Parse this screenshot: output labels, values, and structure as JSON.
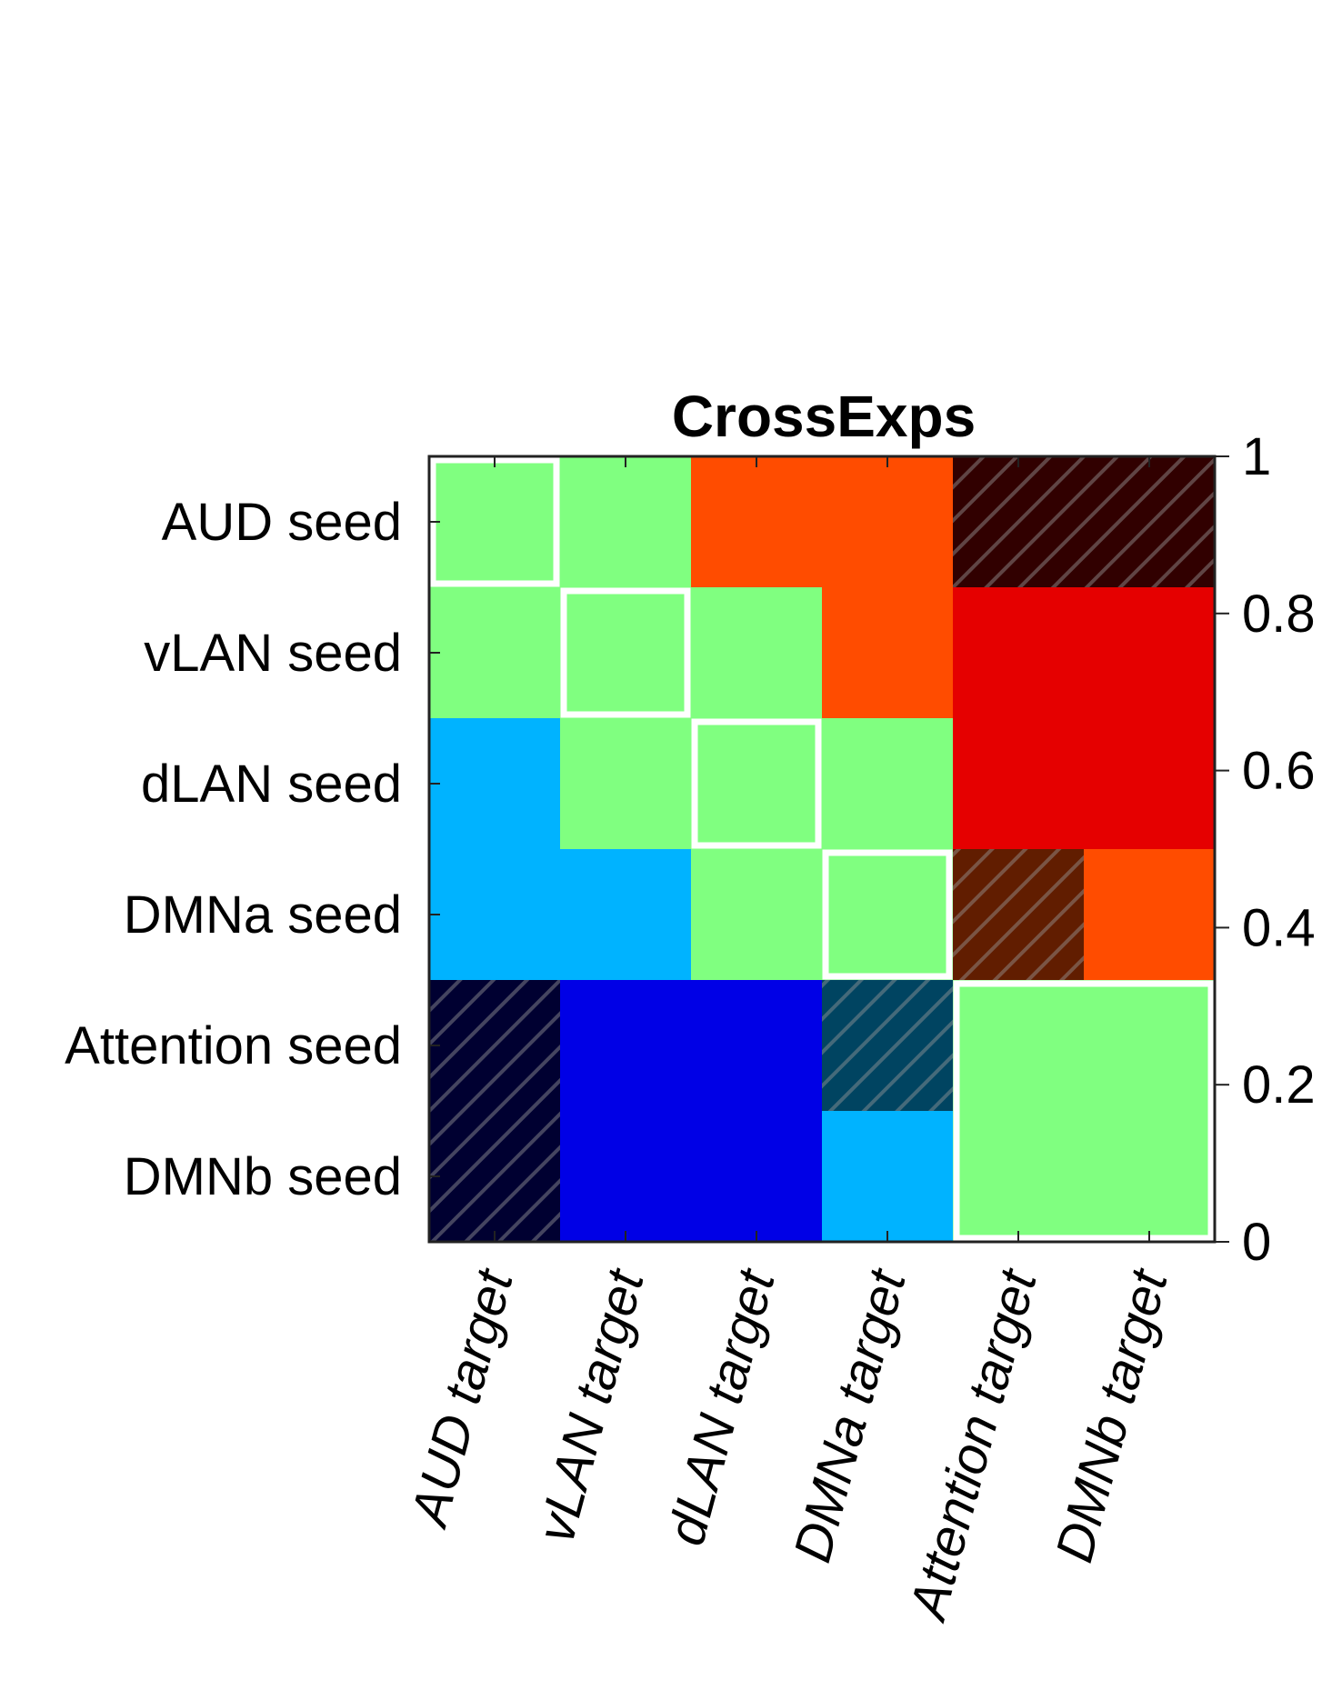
{
  "chart_data": {
    "type": "heatmap",
    "title": "CrossExps",
    "row_labels": [
      "AUD seed",
      "vLAN seed",
      "dLAN seed",
      "DMNa seed",
      "Attention seed",
      "DMNb seed"
    ],
    "col_labels": [
      "AUD target",
      "vLAN target",
      "dLAN target",
      "DMNa target",
      "Attention target",
      "DMNb target"
    ],
    "values": [
      [
        0.5,
        0.5,
        0.8,
        0.8,
        1.0,
        1.0
      ],
      [
        0.5,
        0.5,
        0.5,
        0.8,
        0.9,
        0.9
      ],
      [
        0.3,
        0.5,
        0.5,
        0.5,
        0.9,
        0.9
      ],
      [
        0.3,
        0.3,
        0.5,
        0.5,
        0.8,
        0.8
      ],
      [
        0.0,
        0.1,
        0.1,
        0.3,
        0.5,
        0.5
      ],
      [
        0.0,
        0.1,
        0.1,
        0.3,
        0.5,
        0.5
      ]
    ],
    "hatched": [
      [
        false,
        false,
        false,
        false,
        true,
        true
      ],
      [
        false,
        false,
        false,
        false,
        false,
        false
      ],
      [
        false,
        false,
        false,
        false,
        false,
        false
      ],
      [
        false,
        false,
        false,
        false,
        true,
        false
      ],
      [
        true,
        false,
        false,
        true,
        false,
        false
      ],
      [
        true,
        false,
        false,
        false,
        false,
        false
      ]
    ],
    "highlighted_blocks": [
      {
        "rows": [
          0,
          0
        ],
        "cols": [
          0,
          0
        ]
      },
      {
        "rows": [
          1,
          1
        ],
        "cols": [
          1,
          1
        ]
      },
      {
        "rows": [
          2,
          2
        ],
        "cols": [
          2,
          2
        ]
      },
      {
        "rows": [
          3,
          3
        ],
        "cols": [
          3,
          3
        ]
      },
      {
        "rows": [
          4,
          5
        ],
        "cols": [
          4,
          5
        ]
      }
    ],
    "colormap": "jet",
    "colorbar": {
      "min": 0,
      "max": 1,
      "ticks": [
        0,
        0.2,
        0.4,
        0.6,
        0.8,
        1
      ],
      "tick_labels": [
        "0",
        "0.2",
        "0.4",
        "0.6",
        "0.8",
        "1"
      ],
      "placement": "right"
    }
  }
}
